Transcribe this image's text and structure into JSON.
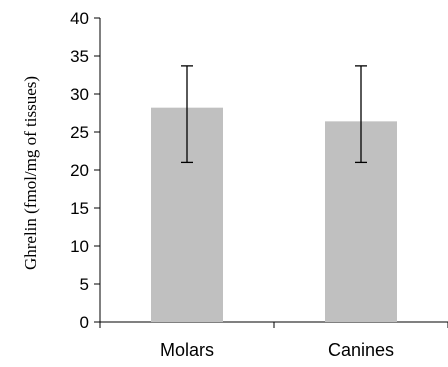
{
  "chart_data": {
    "type": "bar",
    "title": "",
    "xlabel": "",
    "ylabel": "Ghrelin (fmol/mg of tissues)",
    "ylim": [
      0,
      40
    ],
    "yticks": [
      0,
      5,
      10,
      15,
      20,
      25,
      30,
      35,
      40
    ],
    "categories": [
      "Molars",
      "Canines"
    ],
    "values": [
      28.2,
      26.4
    ],
    "error_bars": [
      {
        "low": 21.0,
        "high": 33.7
      },
      {
        "low": 21.0,
        "high": 33.7
      }
    ],
    "bar_color": "#c0c0c0",
    "grid": false,
    "legend": "none"
  }
}
